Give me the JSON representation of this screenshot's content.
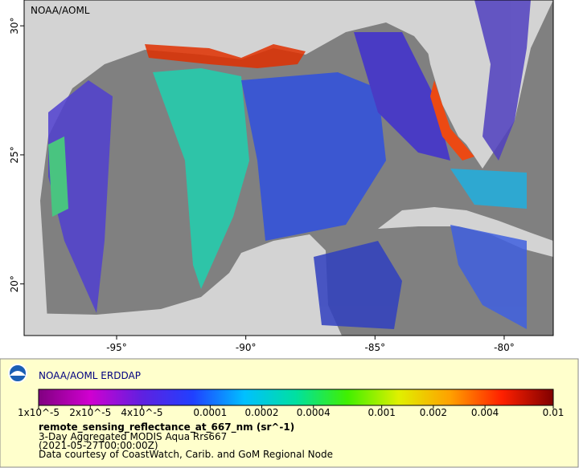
{
  "map": {
    "label": "NOAA/AOML",
    "xlim": [
      -98.58,
      -78.1
    ],
    "ylim": [
      18.0,
      31.0
    ],
    "xticks": [
      {
        "value": -95,
        "label": "-95°"
      },
      {
        "value": -90,
        "label": "-90°"
      },
      {
        "value": -85,
        "label": "-85°"
      },
      {
        "value": -80,
        "label": "-80°"
      }
    ],
    "yticks": [
      {
        "value": 20,
        "label": "20°"
      },
      {
        "value": 25,
        "label": "25°"
      },
      {
        "value": 30,
        "label": "30°"
      }
    ]
  },
  "legend": {
    "title": "NOAA/AOML ERDDAP",
    "colorbar": {
      "log_scale": true,
      "lim": [
        1e-05,
        0.01
      ],
      "colors": [
        "#800080",
        "#d000d0",
        "#6020e0",
        "#2040ff",
        "#00c0ff",
        "#00e0a0",
        "#40f000",
        "#e0f000",
        "#ffa000",
        "#ff2000",
        "#800000"
      ],
      "ticks": [
        {
          "value": 1e-05,
          "label": "1x10^-5"
        },
        {
          "value": 2e-05,
          "label": "2x10^-5"
        },
        {
          "value": 4e-05,
          "label": "4x10^-5"
        },
        0.0001,
        0.0002,
        0.0004,
        0.001,
        0.002,
        0.004,
        0.01
      ]
    },
    "variable": "remote_sensing_reflectance_at_667_nm (sr^-1)",
    "lines": [
      "3-Day Aggregated MODIS Aqua Rrs667",
      "(2021-05-27T00:00:00Z)",
      "Data courtesy of CoastWatch, Carib. and GoM Regional Node"
    ]
  }
}
